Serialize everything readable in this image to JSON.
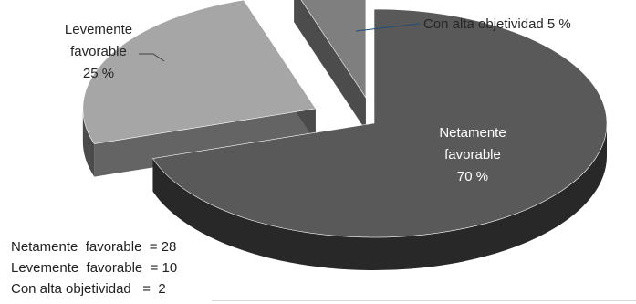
{
  "chart_data": {
    "type": "pie",
    "style": "3d-exploded",
    "slices": [
      {
        "name": "Netamente favorable",
        "label": "Netamente\nfavorable\n70 %",
        "value": 70,
        "count": 28,
        "color": "#595959"
      },
      {
        "name": "Levemente favorable",
        "label": "Levemente\nfavorable\n25 %",
        "value": 25,
        "count": 10,
        "color": "#a6a6a6"
      },
      {
        "name": "Con alta objetividad",
        "label": "Con alta objetividad 5 %",
        "value": 5,
        "count": 2,
        "color": "#7f7f7f"
      }
    ]
  },
  "footer": [
    "Netamente  favorable  = 28",
    "Levemente  favorable  = 10",
    "Con alta objetividad   =  2"
  ]
}
